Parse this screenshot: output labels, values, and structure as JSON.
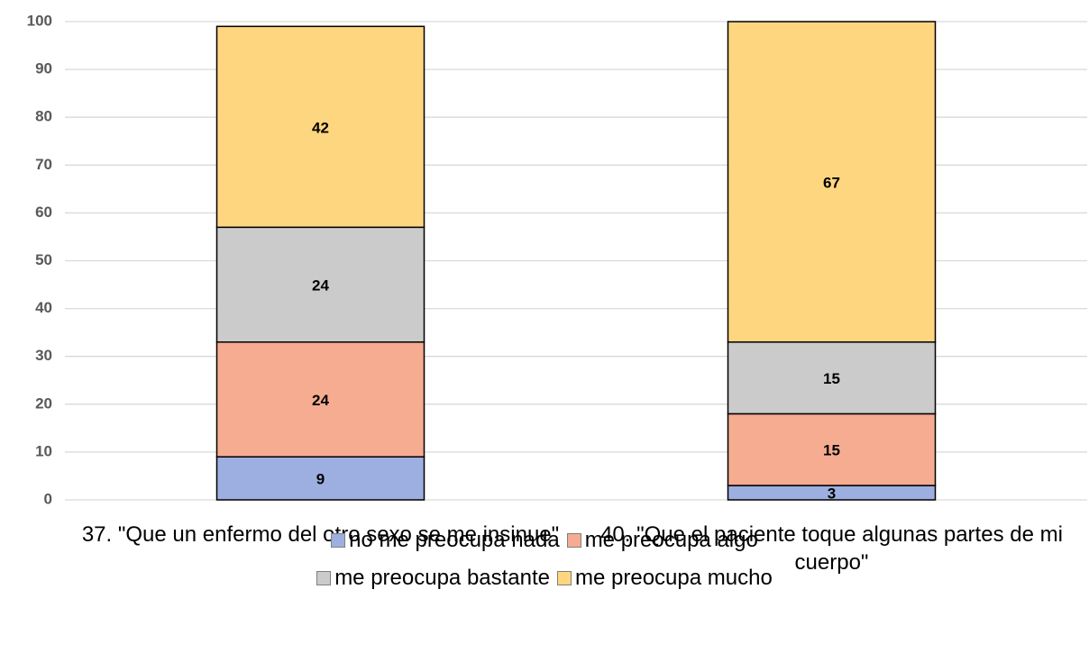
{
  "chart_data": {
    "type": "stacked_bar",
    "categories": [
      "37.  \"Que un enfermo del otro sexo se me insinue\"",
      "40.  \"Que el paciente toque algunas partes de mi cuerpo\""
    ],
    "series": [
      {
        "name": "no me preocupa nada",
        "color": "#9dafe0",
        "values": [
          9,
          3
        ]
      },
      {
        "name": "me preocupa algo",
        "color": "#f5ac90",
        "values": [
          24,
          15
        ]
      },
      {
        "name": "me preocupa bastante",
        "color": "#cbcbcb",
        "values": [
          24,
          15
        ]
      },
      {
        "name": "me preocupa mucho",
        "color": "#ffd680",
        "values": [
          42,
          67
        ]
      }
    ],
    "ylim": [
      0,
      100
    ],
    "yticks": [
      0,
      10,
      20,
      30,
      40,
      50,
      60,
      70,
      80,
      90,
      100
    ],
    "grid": true,
    "legend": "bottom"
  }
}
